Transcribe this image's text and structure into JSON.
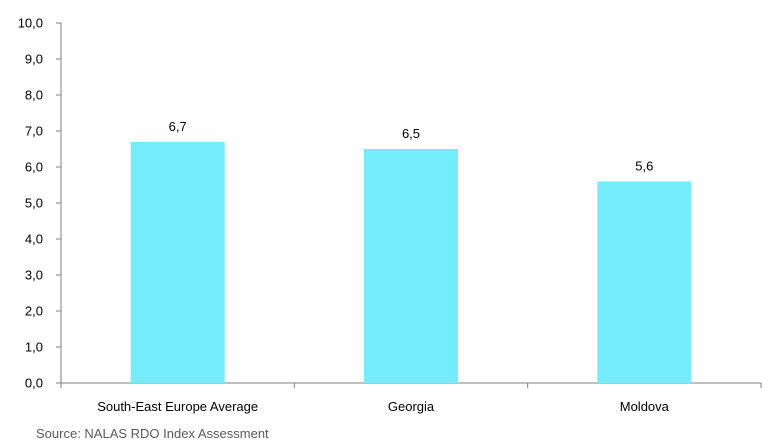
{
  "chart_data": {
    "type": "bar",
    "categories": [
      "South-East Europe Average",
      "Georgia",
      "Moldova"
    ],
    "values": [
      6.7,
      6.5,
      5.6
    ],
    "value_labels": [
      "6,7",
      "6,5",
      "5,6"
    ],
    "title": "",
    "xlabel": "",
    "ylabel": "",
    "ylim": [
      0,
      10
    ],
    "yticks": [
      0,
      1,
      2,
      3,
      4,
      5,
      6,
      7,
      8,
      9,
      10
    ],
    "ytick_labels": [
      "0,0",
      "1,0",
      "2,0",
      "3,0",
      "4,0",
      "5,0",
      "6,0",
      "7,0",
      "8,0",
      "9,0",
      "10,0"
    ],
    "grid": false,
    "legend": "none",
    "bar_color": "#74ECFB"
  },
  "source": "Source: NALAS RDO Index Assessment"
}
